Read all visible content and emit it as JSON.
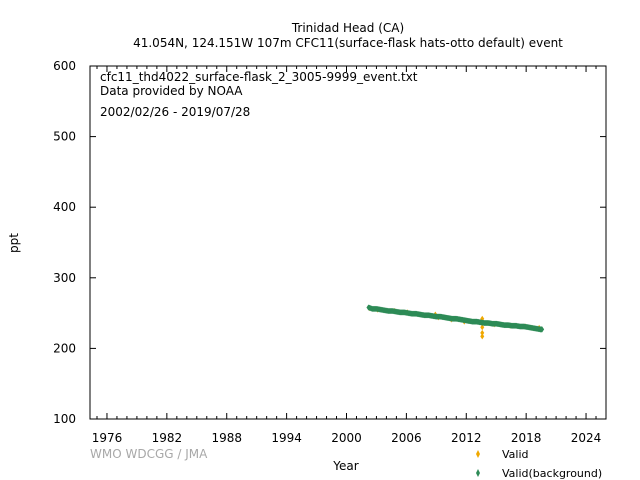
{
  "chart_data": {
    "type": "scatter",
    "title_line1": "Trinidad Head (CA)",
    "title_line2": "41.054N, 124.151W 107m    CFC11(surface-flask hats-otto default) event",
    "annotation_file": "cfc11_thd4022_surface-flask_2_3005-9999_event.txt",
    "annotation_provider": "Data provided by NOAA",
    "annotation_period": "2002/02/26 - 2019/07/28",
    "xlabel": "Year",
    "ylabel": "ppt",
    "xlim": [
      1974.3,
      2026.0
    ],
    "ylim": [
      100,
      600
    ],
    "xticks": [
      1976,
      1982,
      1988,
      1994,
      2000,
      2006,
      2012,
      2018,
      2024
    ],
    "yticks": [
      100,
      200,
      300,
      400,
      500,
      600
    ],
    "grid": false,
    "legend_position": "bottom-right",
    "credit": "WMO WDCGG / JMA",
    "series": [
      {
        "name": "Valid",
        "color": "#f0a800",
        "marker": "diamond",
        "points": [
          [
            2002.3,
            257
          ],
          [
            2003.1,
            255
          ],
          [
            2004.8,
            253
          ],
          [
            2006.1,
            251
          ],
          [
            2008.9,
            248
          ],
          [
            2009.2,
            244
          ],
          [
            2010.5,
            241
          ],
          [
            2011.8,
            238
          ],
          [
            2013.6,
            242
          ],
          [
            2013.6,
            236
          ],
          [
            2013.6,
            230
          ],
          [
            2013.6,
            222
          ],
          [
            2013.6,
            217
          ],
          [
            2014.8,
            234
          ],
          [
            2016.4,
            232
          ],
          [
            2017.9,
            231
          ],
          [
            2019.3,
            229
          ]
        ]
      },
      {
        "name": "Valid(background)",
        "color": "#2e8b57",
        "marker": "diamond",
        "points": [
          [
            2002.2,
            258
          ],
          [
            2002.6,
            256
          ],
          [
            2003.0,
            256
          ],
          [
            2003.4,
            255
          ],
          [
            2003.8,
            254
          ],
          [
            2004.2,
            253
          ],
          [
            2004.6,
            253
          ],
          [
            2005.0,
            252
          ],
          [
            2005.4,
            251
          ],
          [
            2005.8,
            251
          ],
          [
            2006.2,
            250
          ],
          [
            2006.6,
            249
          ],
          [
            2007.0,
            249
          ],
          [
            2007.4,
            248
          ],
          [
            2007.8,
            247
          ],
          [
            2008.2,
            247
          ],
          [
            2008.6,
            246
          ],
          [
            2009.0,
            245
          ],
          [
            2009.4,
            245
          ],
          [
            2009.8,
            244
          ],
          [
            2010.2,
            243
          ],
          [
            2010.6,
            242
          ],
          [
            2011.0,
            242
          ],
          [
            2011.4,
            241
          ],
          [
            2011.8,
            240
          ],
          [
            2012.2,
            239
          ],
          [
            2012.6,
            238
          ],
          [
            2013.0,
            238
          ],
          [
            2013.4,
            237
          ],
          [
            2013.8,
            236
          ],
          [
            2014.2,
            236
          ],
          [
            2014.6,
            235
          ],
          [
            2015.0,
            235
          ],
          [
            2015.4,
            234
          ],
          [
            2015.8,
            233
          ],
          [
            2016.2,
            233
          ],
          [
            2016.6,
            232
          ],
          [
            2017.0,
            232
          ],
          [
            2017.4,
            231
          ],
          [
            2017.8,
            231
          ],
          [
            2018.2,
            230
          ],
          [
            2018.6,
            229
          ],
          [
            2019.0,
            228
          ],
          [
            2019.4,
            227
          ],
          [
            2019.6,
            227
          ]
        ]
      }
    ]
  }
}
